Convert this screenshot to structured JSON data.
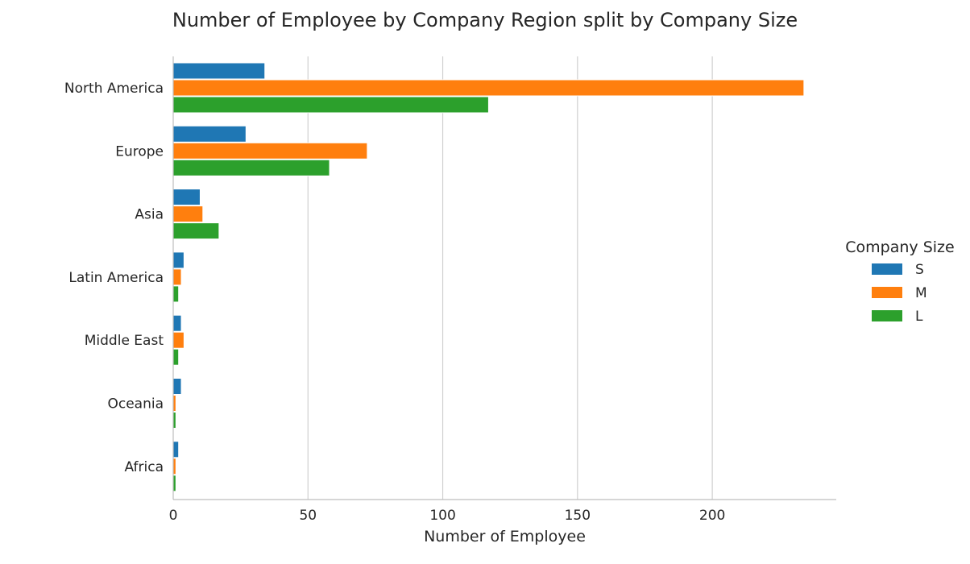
{
  "chart_data": {
    "type": "bar",
    "orientation": "horizontal",
    "title": "Number of Employee by Company Region split by Company Size",
    "xlabel": "Number of Employee",
    "ylabel": "",
    "categories": [
      "North America",
      "Europe",
      "Asia",
      "Latin America",
      "Middle East",
      "Oceania",
      "Africa"
    ],
    "series": [
      {
        "name": "S",
        "color": "#1f77b4",
        "values": [
          34,
          27,
          10,
          4,
          3,
          3,
          2
        ]
      },
      {
        "name": "M",
        "color": "#ff7f0e",
        "values": [
          234,
          72,
          11,
          3,
          4,
          1,
          1
        ]
      },
      {
        "name": "L",
        "color": "#2ca02c",
        "values": [
          117,
          58,
          17,
          2,
          2,
          1,
          1
        ]
      }
    ],
    "xlim": [
      0,
      246
    ],
    "xticks": [
      0,
      50,
      100,
      150,
      200
    ],
    "grid": "vertical",
    "legend": {
      "title": "Company Size",
      "placement": "right"
    }
  }
}
